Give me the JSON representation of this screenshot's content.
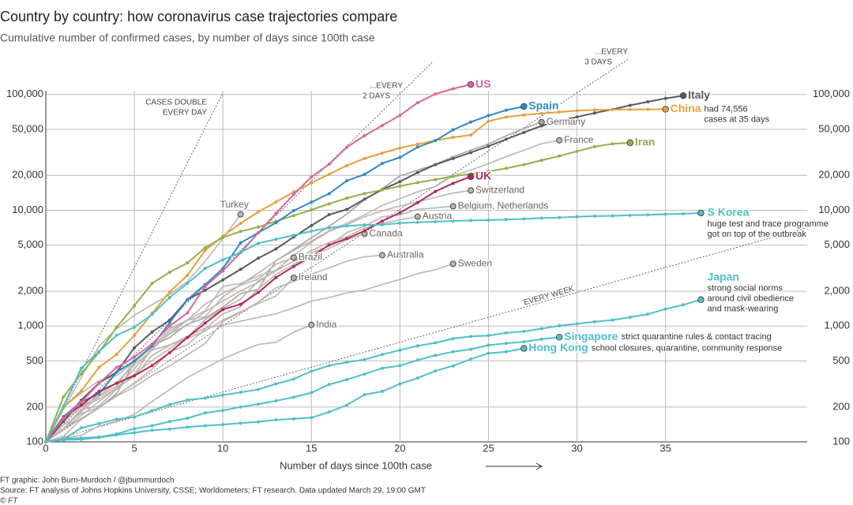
{
  "chart_data": {
    "type": "line",
    "title": "Country by country: how coronavirus case trajectories compare",
    "subtitle": "Cumulative number of confirmed cases, by number of days since 100th case",
    "x_label": "Number of days since 100th case",
    "footer": [
      "FT graphic: John Burn-Murdoch / @jburnmurdoch",
      "Source: FT analysis of Johns Hopkins University, CSSE; Worldometers; FT research. Data updated March 29, 19:00 GMT",
      "© FT"
    ],
    "log_y": true,
    "grid": true,
    "xlim": [
      0,
      43
    ],
    "xticks": [
      0,
      5,
      10,
      15,
      20,
      25,
      30,
      35
    ],
    "ylim": [
      100,
      130000
    ],
    "yticks": [
      100,
      200,
      500,
      {
        "value": 1000,
        "label": "1,000"
      },
      {
        "value": 2000,
        "label": "2,000"
      },
      {
        "value": 5000,
        "label": "5,000"
      },
      {
        "value": 10000,
        "label": "10,000"
      },
      {
        "value": 20000,
        "label": "20,000"
      },
      {
        "value": 50000,
        "label": "50,000"
      },
      {
        "value": 100000,
        "label": "100,000"
      }
    ],
    "reference_lines": [
      {
        "label": [
          "CASES DOUBLE",
          "EVERY DAY"
        ]
      },
      {
        "label": [
          "...EVERY",
          "2 DAYS"
        ]
      },
      {
        "label": [
          "...EVERY",
          "3 DAYS"
        ]
      },
      {
        "label": [
          "EVERY WEEK"
        ]
      }
    ],
    "x": [
      0,
      1,
      2,
      3,
      4,
      5,
      6,
      7,
      8,
      9,
      10,
      11,
      12,
      13,
      14,
      15,
      16,
      17,
      18,
      19,
      20,
      21,
      22,
      23,
      24,
      25,
      26,
      27,
      28,
      29,
      30,
      31,
      32,
      33,
      34,
      35,
      36,
      37
    ],
    "series": [
      {
        "name": "Germany",
        "color": "#aaa29d",
        "highlight": false,
        "values": [
          100,
          130,
          159,
          196,
          262,
          482,
          670,
          799,
          1040,
          1176,
          1457,
          1908,
          2078,
          3675,
          4585,
          5795,
          7272,
          9257,
          12327,
          15320,
          19848,
          22213,
          24873,
          29056,
          32986,
          37323,
          43938,
          50871,
          57695,
          null,
          null,
          null,
          null,
          null,
          null,
          null,
          null,
          null
        ]
      },
      {
        "name": "France",
        "color": "#bdb4ae",
        "highlight": false,
        "values": [
          100,
          130,
          191,
          204,
          285,
          377,
          653,
          949,
          1126,
          1209,
          1784,
          2281,
          2876,
          3661,
          4499,
          5423,
          6633,
          7730,
          9134,
          10995,
          12612,
          14459,
          16018,
          19856,
          22304,
          25233,
          29155,
          32964,
          37575,
          40174,
          null,
          null,
          null,
          null,
          null,
          null,
          null,
          null
        ]
      },
      {
        "name": "Switzerland",
        "color": "#bdb4ae",
        "highlight": false,
        "values": [
          100,
          200,
          264,
          337,
          374,
          491,
          652,
          858,
          1125,
          1359,
          2200,
          2330,
          2700,
          3028,
          4075,
          5294,
          6575,
          7474,
          8795,
          9877,
          10897,
          11811,
          12928,
          14076,
          14829,
          null,
          null,
          null,
          null,
          null,
          null,
          null,
          null,
          null,
          null,
          null,
          null,
          null
        ]
      },
      {
        "name": "Belgium, Netherlands",
        "color": "#bdb4ae",
        "highlight": false,
        "values": [
          100,
          128,
          188,
          265,
          321,
          382,
          503,
          639,
          804,
          1135,
          1413,
          1705,
          2460,
          2994,
          3631,
          4269,
          4937,
          6412,
          7284,
          8788,
          9134,
          10200,
          10500,
          10836,
          null,
          null,
          null,
          null,
          null,
          null,
          null,
          null,
          null,
          null,
          null,
          null,
          null,
          null
        ]
      },
      {
        "name": "Austria",
        "color": "#bdb4ae",
        "highlight": false,
        "values": [
          100,
          131,
          182,
          246,
          302,
          504,
          655,
          860,
          1018,
          1332,
          1646,
          2013,
          2388,
          3024,
          3631,
          4486,
          5282,
          5888,
          7029,
          7697,
          8271,
          8813,
          null,
          null,
          null,
          null,
          null,
          null,
          null,
          null,
          null,
          null,
          null,
          null,
          null,
          null,
          null,
          null
        ]
      },
      {
        "name": "Turkey",
        "color": "#bdb4ae",
        "highlight": false,
        "values": [
          100,
          191,
          359,
          670,
          947,
          1236,
          1529,
          1872,
          2433,
          3629,
          5698,
          9217,
          null,
          null,
          null,
          null,
          null,
          null,
          null,
          null,
          null,
          null,
          null,
          null,
          null,
          null,
          null,
          null,
          null,
          null,
          null,
          null,
          null,
          null,
          null,
          null,
          null,
          null
        ]
      },
      {
        "name": "Canada",
        "color": "#bdb4ae",
        "highlight": false,
        "values": [
          100,
          140,
          176,
          198,
          252,
          324,
          424,
          598,
          690,
          943,
          1277,
          1469,
          2088,
          2792,
          3409,
          4042,
          4682,
          5576,
          6280,
          null,
          null,
          null,
          null,
          null,
          null,
          null,
          null,
          null,
          null,
          null,
          null,
          null,
          null,
          null,
          null,
          null,
          null,
          null
        ]
      },
      {
        "name": "Brazil",
        "color": "#bdb4ae",
        "highlight": false,
        "values": [
          100,
          151,
          200,
          234,
          291,
          428,
          621,
          904,
          1128,
          1546,
          1924,
          2247,
          2554,
          3417,
          3904,
          null,
          null,
          null,
          null,
          null,
          null,
          null,
          null,
          null,
          null,
          null,
          null,
          null,
          null,
          null,
          null,
          null,
          null,
          null,
          null,
          null,
          null,
          null
        ]
      },
      {
        "name": "Australia",
        "color": "#bdb4ae",
        "highlight": false,
        "values": [
          100,
          112,
          156,
          197,
          249,
          298,
          375,
          454,
          565,
          709,
          1098,
          1314,
          1609,
          2136,
          2431,
          2810,
          3179,
          3635,
          3966,
          4093,
          null,
          null,
          null,
          null,
          null,
          null,
          null,
          null,
          null,
          null,
          null,
          null,
          null,
          null,
          null,
          null,
          null,
          null
        ]
      },
      {
        "name": "Sweden",
        "color": "#bdb4ae",
        "highlight": false,
        "values": [
          100,
          161,
          203,
          248,
          326,
          461,
          620,
          687,
          814,
          961,
          1022,
          1103,
          1190,
          1279,
          1439,
          1639,
          1763,
          1934,
          2046,
          2286,
          2526,
          2840,
          3069,
          3447,
          null,
          null,
          null,
          null,
          null,
          null,
          null,
          null,
          null,
          null,
          null,
          null,
          null,
          null
        ]
      },
      {
        "name": "Ireland",
        "color": "#bdb4ae",
        "highlight": false,
        "values": [
          100,
          129,
          169,
          223,
          292,
          366,
          557,
          683,
          785,
          906,
          1125,
          1329,
          1564,
          1819,
          2615,
          null,
          null,
          null,
          null,
          null,
          null,
          null,
          null,
          null,
          null,
          null,
          null,
          null,
          null,
          null,
          null,
          null,
          null,
          null,
          null,
          null,
          null,
          null
        ]
      },
      {
        "name": "India",
        "color": "#bdb4ae",
        "highlight": false,
        "values": [
          100,
          107,
          114,
          137,
          151,
          173,
          223,
          283,
          360,
          433,
          519,
          606,
          694,
          724,
          887,
          1024,
          null,
          null,
          null,
          null,
          null,
          null,
          null,
          null,
          null,
          null,
          null,
          null,
          null,
          null,
          null,
          null,
          null,
          null,
          null,
          null,
          null,
          null
        ]
      },
      {
        "name": "Italy",
        "color": "#5a5a5a",
        "highlight": true,
        "values": [
          100,
          150,
          229,
          322,
          400,
          650,
          888,
          1128,
          1694,
          2036,
          2502,
          3089,
          3858,
          4636,
          5883,
          7375,
          9172,
          10149,
          12462,
          15113,
          17660,
          21157,
          24747,
          27980,
          31506,
          35713,
          41035,
          47021,
          53578,
          59138,
          63927,
          69176,
          74386,
          80589,
          86498,
          92472,
          97689,
          null
        ]
      },
      {
        "name": "China",
        "color": "#e3a13d",
        "highlight": true,
        "note": [
          "had 74,556",
          "cases at 35 days"
        ],
        "values": [
          100,
          198,
          275,
          440,
          571,
          830,
          1287,
          1975,
          2744,
          4515,
          5974,
          7711,
          9692,
          11791,
          14380,
          17205,
          20438,
          24324,
          28018,
          31161,
          34546,
          37198,
          40171,
          42638,
          44653,
          58761,
          63851,
          66492,
          68500,
          70548,
          72436,
          73500,
          74000,
          74185,
          74300,
          74556,
          null,
          null
        ]
      },
      {
        "name": "Iran",
        "color": "#93ae4c",
        "highlight": true,
        "values": [
          100,
          245,
          388,
          593,
          978,
          1501,
          2336,
          2922,
          3513,
          4747,
          5823,
          6566,
          7161,
          8042,
          9000,
          10075,
          11364,
          12729,
          13938,
          14991,
          16169,
          17361,
          18407,
          19644,
          20610,
          21638,
          23049,
          24811,
          27017,
          29406,
          32332,
          35408,
          37500,
          38309,
          null,
          null,
          null,
          null
        ]
      },
      {
        "name": "Spain",
        "color": "#2f8ac4",
        "highlight": true,
        "values": [
          100,
          165,
          222,
          259,
          400,
          500,
          673,
          1073,
          1695,
          2277,
          3146,
          5232,
          6391,
          7798,
          9942,
          11748,
          13910,
          17963,
          20410,
          25374,
          28603,
          35136,
          39885,
          49515,
          57786,
          65719,
          73235,
          78797,
          null,
          null,
          null,
          null,
          null,
          null,
          null,
          null,
          null,
          null
        ]
      },
      {
        "name": "UK",
        "color": "#b3285a",
        "highlight": true,
        "values": [
          100,
          164,
          207,
          273,
          321,
          373,
          456,
          590,
          797,
          1061,
          1391,
          1543,
          1950,
          2626,
          3269,
          3983,
          5018,
          5683,
          6650,
          8077,
          9529,
          11658,
          14543,
          17089,
          19522,
          null,
          null,
          null,
          null,
          null,
          null,
          null,
          null,
          null,
          null,
          null,
          null,
          null
        ]
      },
      {
        "name": "US",
        "color": "#d9659a",
        "highlight": true,
        "values": [
          100,
          160,
          220,
          320,
          440,
          540,
          700,
          1000,
          1300,
          2200,
          3000,
          4300,
          6400,
          9400,
          13700,
          19400,
          25000,
          35000,
          44000,
          54000,
          66000,
          85000,
          101000,
          112000,
          122000,
          null,
          null,
          null,
          null,
          null,
          null,
          null,
          null,
          null,
          null,
          null,
          null,
          null
        ]
      },
      {
        "name": "S Korea",
        "color": "#4fbfc9",
        "highlight": true,
        "note": [
          "huge test and trace programme",
          "got on top of the outbreak"
        ],
        "values": [
          100,
          204,
          433,
          602,
          833,
          977,
          1261,
          1766,
          2337,
          3150,
          3736,
          4335,
          5186,
          5621,
          6088,
          6593,
          7041,
          7314,
          7478,
          7513,
          7755,
          7869,
          7979,
          8086,
          8162,
          8236,
          8320,
          8413,
          8565,
          8652,
          8799,
          8897,
          8961,
          9037,
          9137,
          9241,
          9332,
          9478
        ]
      },
      {
        "name": "Japan",
        "color": "#4fbfc9",
        "highlight": true,
        "note": [
          "strong social norms",
          "around civil obedience",
          "and mask-wearing"
        ],
        "values": [
          100,
          105,
          132,
          144,
          157,
          164,
          186,
          210,
          230,
          239,
          254,
          268,
          284,
          317,
          349,
          408,
          455,
          488,
          514,
          568,
          620,
          675,
          716,
          780,
          814,
          829,
          873,
          900,
          950,
          1007,
          1046,
          1089,
          1128,
          1193,
          1268,
          1401,
          1524,
          1693
        ]
      },
      {
        "name": "Singapore",
        "color": "#4fbfc9",
        "highlight": true,
        "note": [
          "strict quarantine rules & contact tracing"
        ],
        "values": [
          100,
          106,
          108,
          110,
          117,
          130,
          138,
          150,
          160,
          178,
          187,
          200,
          212,
          226,
          243,
          266,
          313,
          345,
          385,
          432,
          455,
          509,
          558,
          600,
          631,
          683,
          710,
          732,
          770,
          802,
          null,
          null,
          null,
          null,
          null,
          null,
          null,
          null
        ]
      },
      {
        "name": "Hong Kong",
        "color": "#4fbfc9",
        "highlight": true,
        "note": [
          "school closures, quarantine, community response"
        ],
        "values": [
          100,
          104,
          105,
          109,
          115,
          120,
          126,
          129,
          134,
          138,
          141,
          145,
          149,
          155,
          158,
          162,
          181,
          208,
          256,
          273,
          317,
          356,
          410,
          453,
          518,
          582,
          600,
          642,
          null,
          null,
          null,
          null,
          null,
          null,
          null,
          null,
          null,
          null
        ]
      }
    ]
  }
}
